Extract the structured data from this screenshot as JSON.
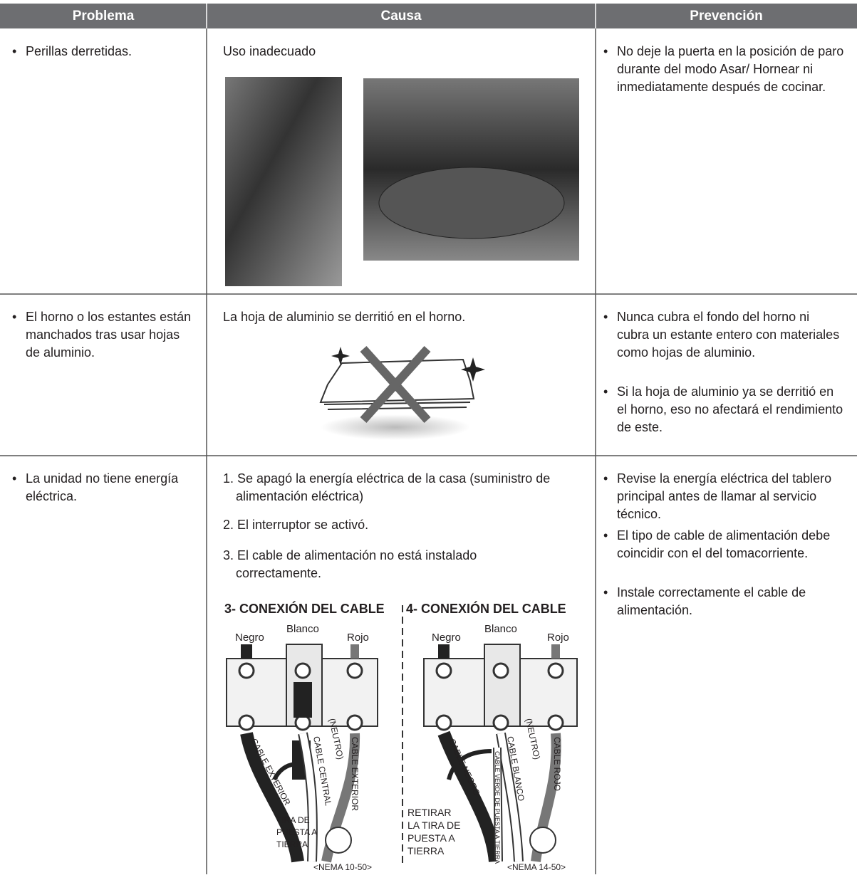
{
  "header": {
    "columns": [
      "Problema",
      "Causa",
      "Prevención"
    ]
  },
  "rows": [
    {
      "problem": "Perillas derretidas.",
      "cause": [
        "Uso inadecuado"
      ],
      "prevention": [
        "No deje la puerta en la posición de paro durante del modo Asar/ Hornear ni inmediatamente después de cocinar."
      ]
    },
    {
      "problem": "El horno o los estantes están manchados tras usar hojas de aluminio.",
      "cause": [
        "La hoja de aluminio se derritió en el horno."
      ],
      "prevention": [
        "Nunca cubra el fondo del horno ni cubra un estante entero con materiales como hojas de aluminio.",
        "Si la hoja de aluminio ya se derritió en el horno, eso no afectará el rendimiento de este."
      ]
    },
    {
      "problem": "La unidad no tiene energía eléctrica.",
      "cause": [
        "1. Se apagó la energía eléctrica de la casa (suministro de alimentación eléctrica)",
        "2. El interruptor se activó.",
        "3. El cable de alimentación no está instalado correctamente."
      ],
      "prevention": [
        "Revise la energía eléctrica del tablero principal antes de llamar al servicio técnico.",
        "El tipo de cable de alimentación debe coincidir con el del tomacorriente.",
        "Instale correctamente el cable de alimentación."
      ]
    }
  ],
  "diagrams": [
    {
      "title": "3- CONEXIÓN DEL CABLE",
      "wires": [
        "Negro",
        "Blanco",
        "Rojo"
      ],
      "cables": [
        "CABLE EXTERIOR",
        "CABLE CENTRAL",
        "(NEUTRO)",
        "CABLE EXTERIOR"
      ],
      "note": [
        "TIRA DE",
        "PUESTA A",
        "TIERRA"
      ],
      "outlet": "<NEMA 10-50>"
    },
    {
      "title": "4- CONEXIÓN DEL CABLE",
      "wires": [
        "Negro",
        "Blanco",
        "Rojo"
      ],
      "cables": [
        "CABLE NEGRO",
        "CABLE BLANCO",
        "(NEUTRO)",
        "CABLE ROJO",
        "CABLE VERDE DE PUESTA A TIERRA"
      ],
      "note": [
        "RETIRAR",
        "LA TIRA DE",
        "PUESTA A",
        "TIERRA"
      ],
      "outlet": "<NEMA 14-50>"
    }
  ]
}
